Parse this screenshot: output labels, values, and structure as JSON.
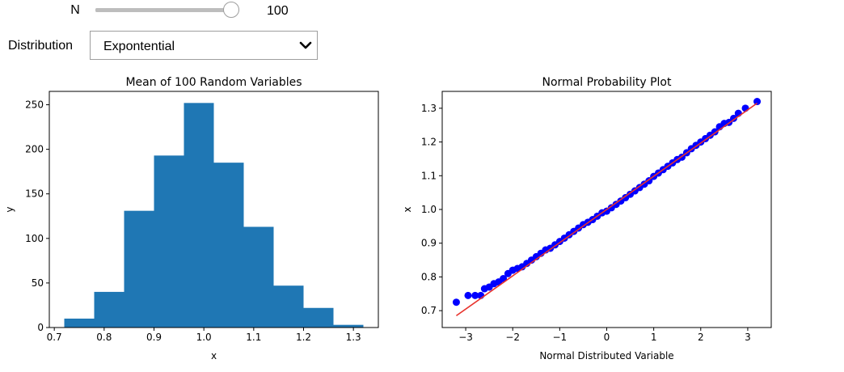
{
  "controls": {
    "n_label": "N",
    "n_value": "100",
    "n_fraction": 1.0,
    "distribution_label": "Distribution",
    "distribution_value": "Expontential",
    "chevron_icon": "chevron-down-icon"
  },
  "colors": {
    "bar": "#1f77b4",
    "points": "#0000ff",
    "fit_line": "#e8322c",
    "slider_track": "#bdbdbd"
  },
  "chart_data": [
    {
      "type": "bar",
      "title": "Mean of 100 Random Variables",
      "xlabel": "x",
      "ylabel": "y",
      "bin_edges": [
        0.72,
        0.78,
        0.84,
        0.9,
        0.96,
        1.02,
        1.08,
        1.14,
        1.2,
        1.26,
        1.32
      ],
      "values": [
        10,
        40,
        131,
        193,
        252,
        185,
        113,
        47,
        22,
        3
      ],
      "xlim": [
        0.69,
        1.35
      ],
      "ylim": [
        0,
        265
      ],
      "xticks": [
        "0.7",
        "0.8",
        "0.9",
        "1.0",
        "1.1",
        "1.2",
        "1.3"
      ],
      "yticks": [
        "0",
        "50",
        "100",
        "150",
        "200",
        "250"
      ]
    },
    {
      "type": "scatter",
      "title": "Normal Probability Plot",
      "xlabel": "Normal Distributed Variable",
      "ylabel": "x",
      "xlim": [
        -3.5,
        3.5
      ],
      "ylim": [
        0.65,
        1.35
      ],
      "xticks": [
        "−3",
        "−2",
        "−1",
        "0",
        "1",
        "2",
        "3"
      ],
      "yticks": [
        "0.7",
        "0.8",
        "0.9",
        "1.0",
        "1.1",
        "1.2",
        "1.3"
      ],
      "fit_line": {
        "x": [
          -3.2,
          3.2
        ],
        "y": [
          0.685,
          1.315
        ]
      },
      "points": {
        "x": [
          -3.2,
          -2.95,
          -2.8,
          -2.68,
          -2.6,
          -2.5,
          -2.4,
          -2.3,
          -2.2,
          -2.1,
          -2.0,
          -1.9,
          -1.8,
          -1.7,
          -1.6,
          -1.5,
          -1.4,
          -1.3,
          -1.2,
          -1.1,
          -1.0,
          -0.9,
          -0.8,
          -0.7,
          -0.6,
          -0.5,
          -0.4,
          -0.3,
          -0.2,
          -0.1,
          0.0,
          0.1,
          0.2,
          0.3,
          0.4,
          0.5,
          0.6,
          0.7,
          0.8,
          0.9,
          1.0,
          1.1,
          1.2,
          1.3,
          1.4,
          1.5,
          1.6,
          1.7,
          1.8,
          1.9,
          2.0,
          2.1,
          2.2,
          2.3,
          2.4,
          2.5,
          2.6,
          2.7,
          2.8,
          2.95,
          3.2
        ],
        "y": [
          0.725,
          0.745,
          0.745,
          0.745,
          0.765,
          0.77,
          0.78,
          0.785,
          0.795,
          0.81,
          0.82,
          0.825,
          0.83,
          0.84,
          0.85,
          0.86,
          0.87,
          0.88,
          0.885,
          0.895,
          0.905,
          0.915,
          0.925,
          0.935,
          0.945,
          0.955,
          0.962,
          0.97,
          0.98,
          0.99,
          0.995,
          1.005,
          1.015,
          1.025,
          1.035,
          1.045,
          1.055,
          1.065,
          1.075,
          1.085,
          1.098,
          1.108,
          1.118,
          1.128,
          1.138,
          1.148,
          1.155,
          1.168,
          1.18,
          1.19,
          1.2,
          1.21,
          1.22,
          1.23,
          1.245,
          1.255,
          1.258,
          1.27,
          1.285,
          1.3,
          1.32
        ]
      }
    }
  ]
}
